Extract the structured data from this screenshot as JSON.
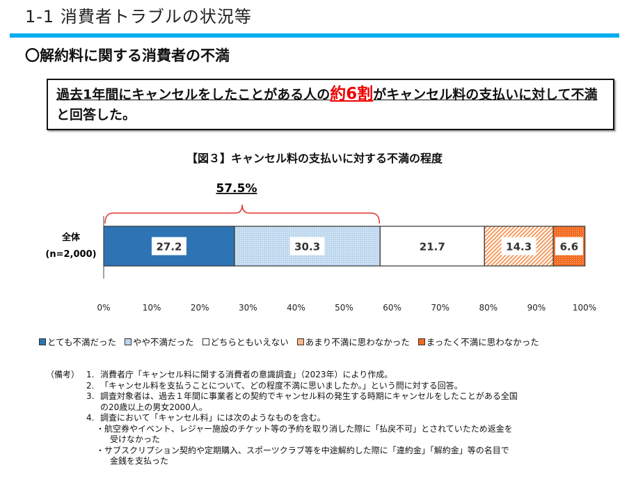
{
  "header": {
    "title": "1-1  消費者トラブルの状況等"
  },
  "subtitle": "〇解約料に関する消費者の不満",
  "summary": {
    "part1": "過去1年間にキャンセルをしたことがある人の",
    "highlight": "約6割",
    "part2": "がキャンセル料の支払いに対して不満",
    "part3": "と回答した。"
  },
  "chart_data": {
    "type": "bar",
    "orientation": "horizontal-stacked-100",
    "title": "【図３】キャンセル料の支払いに対する不満の程度",
    "categories": [
      "全体\n(n=2,000)"
    ],
    "category_label_line1": "全体",
    "category_label_line2": "(n=2,000)",
    "series": [
      {
        "name": "とても不満だった",
        "values": [
          27.2
        ],
        "color": "#2e74b5"
      },
      {
        "name": "やや不満だった",
        "values": [
          30.3
        ],
        "color": "#bdd7ee"
      },
      {
        "name": "どちらともいえない",
        "values": [
          21.7
        ],
        "color": "#ffffff"
      },
      {
        "name": "あまり不満に思わなかった",
        "values": [
          14.3
        ],
        "color": "#f8b58a"
      },
      {
        "name": "まったく不満に思わなかった",
        "values": [
          6.6
        ],
        "color": "#f26b1d"
      }
    ],
    "data_labels": [
      "27.2",
      "30.3",
      "21.7",
      "14.3",
      "6.6"
    ],
    "xlim": [
      0,
      100
    ],
    "xticks": [
      "0%",
      "10%",
      "20%",
      "30%",
      "40%",
      "50%",
      "60%",
      "70%",
      "80%",
      "90%",
      "100%"
    ],
    "annotation": {
      "text": "57.5%",
      "span": [
        0,
        57.5
      ],
      "color": "#e53030"
    },
    "legend_position": "bottom",
    "grid": false
  },
  "notes": {
    "label": "（備考）",
    "items": [
      {
        "num": "1.",
        "text": "消費者庁「キャンセル料に関する消費者の意識調査」（2023年）により作成。"
      },
      {
        "num": "2.",
        "text": "「キャンセル料を支払うことについて、どの程度不満に思いましたか。」という問に対する回答。"
      },
      {
        "num": "3.",
        "text": "調査対象者は、過去１年間に事業者との契約でキャンセル料の発生する時期にキャンセルをしたことがある全国",
        "cont": "の20歳以上の男女2000人。"
      },
      {
        "num": "4.",
        "text": "調査において「キャンセル料」には次のようなものを含む。"
      }
    ],
    "bullets": [
      {
        "text": "・航空券やイベント、レジャー施設のチケット等の予約を取り消した際に「払戻不可」とされていたため返金を",
        "cont": "受けなかった"
      },
      {
        "text": "・サブスクリプション契約や定期購入、スポーツクラブ等を中途解約した際に「違約金」「解約金」等の名目で",
        "cont": "金銭を支払った"
      }
    ]
  }
}
